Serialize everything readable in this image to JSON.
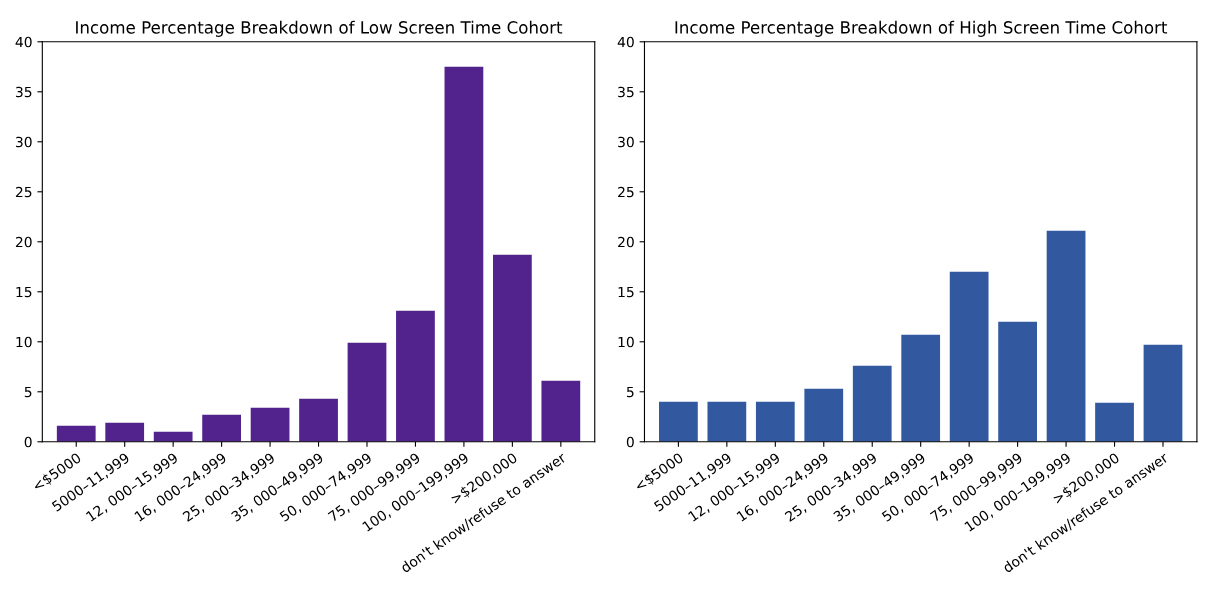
{
  "chart_data": [
    {
      "type": "bar",
      "title": "Income Percentage Breakdown of Low Screen Time Cohort",
      "categories": [
        "<$5000",
        "5000–11,999",
        "12, 000–15,999",
        "16, 000–24,999",
        "25, 000–34,999",
        "35, 000–49,999",
        "50, 000–74,999",
        "75, 000–99,999",
        "100, 000–199,999",
        ">$200,000",
        "don't know/refuse to answer"
      ],
      "values": [
        1.6,
        1.9,
        1.0,
        2.7,
        3.4,
        4.3,
        9.9,
        13.1,
        37.5,
        18.7,
        6.1
      ],
      "color": "#52238d",
      "ylim": [
        0,
        40
      ],
      "yticks": [
        0,
        5,
        10,
        15,
        20,
        25,
        30,
        35,
        40
      ],
      "grid": false
    },
    {
      "type": "bar",
      "title": "Income Percentage Breakdown of High Screen Time Cohort",
      "categories": [
        "<$5000",
        "5000–11,999",
        "12, 000–15,999",
        "16, 000–24,999",
        "25, 000–34,999",
        "35, 000–49,999",
        "50, 000–74,999",
        "75, 000–99,999",
        "100, 000–199,999",
        ">$200,000",
        "don't know/refuse to answer"
      ],
      "values": [
        4.0,
        4.0,
        4.0,
        5.3,
        7.6,
        10.7,
        17.0,
        12.0,
        21.1,
        3.9,
        9.7
      ],
      "color": "#3259a0",
      "ylim": [
        0,
        40
      ],
      "yticks": [
        0,
        5,
        10,
        15,
        20,
        25,
        30,
        35,
        40
      ],
      "grid": false
    }
  ]
}
